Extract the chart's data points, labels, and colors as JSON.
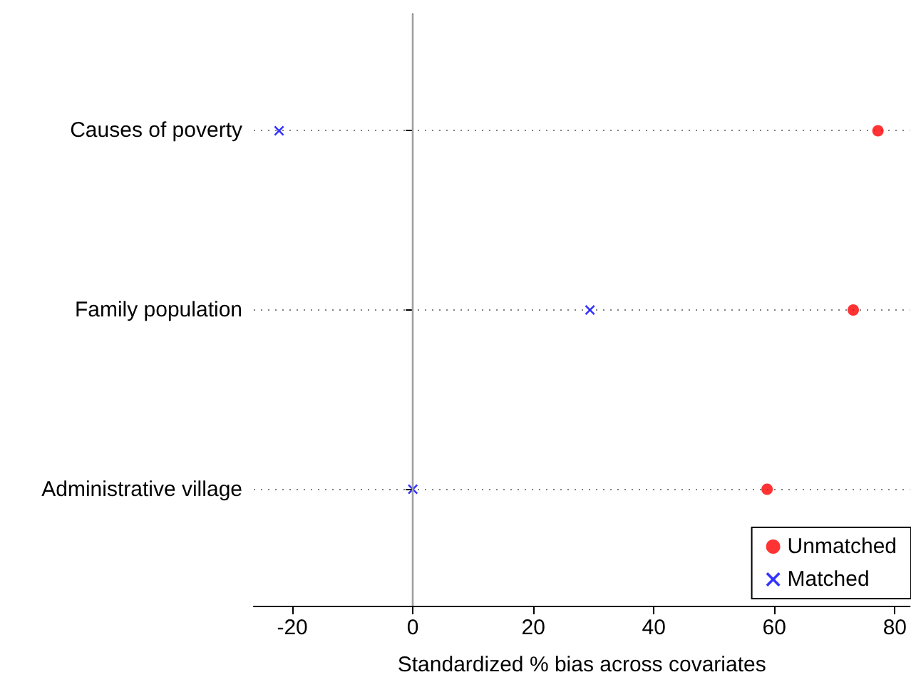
{
  "chart_data": {
    "type": "scatter",
    "xlabel": "Standardized % bias across covariates",
    "categories": [
      "Causes of poverty",
      "Family population",
      "Administrative village"
    ],
    "orientation": "horizontal",
    "series": [
      {
        "name": "Unmatched",
        "color": "#ff0000",
        "marker": "circle",
        "values": [
          77.2,
          73.1,
          58.8
        ]
      },
      {
        "name": "Matched",
        "color": "#0000ff",
        "marker": "cross",
        "values": [
          -22.2,
          29.4,
          0
        ]
      }
    ],
    "xlim": [
      -26.4,
      82.5
    ],
    "xticks": [
      -20,
      0,
      20,
      40,
      60,
      80
    ],
    "ref_lines": [
      {
        "axis": "x",
        "value": 0,
        "color": "#a0a0a0"
      }
    ],
    "grid": "y",
    "legend": "bottom right"
  }
}
